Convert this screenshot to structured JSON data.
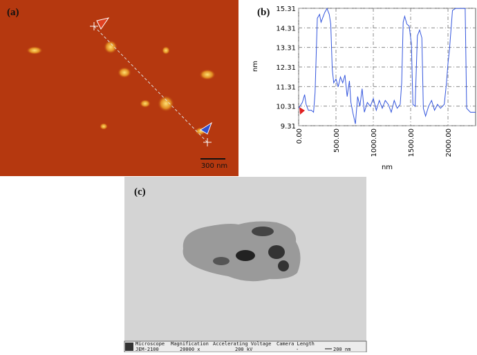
{
  "panel_a": {
    "label": "(a)",
    "scale_bar": "300 nm"
  },
  "chart_data": {
    "type": "line",
    "panel_label": "(b)",
    "y_label": "nm",
    "x_label": "nm",
    "x": [
      0,
      50,
      80,
      100,
      130,
      170,
      200,
      220,
      250,
      280,
      300,
      320,
      350,
      380,
      410,
      430,
      450,
      470,
      500,
      530,
      560,
      590,
      620,
      650,
      680,
      700,
      730,
      760,
      790,
      820,
      850,
      880,
      920,
      960,
      1000,
      1040,
      1080,
      1120,
      1160,
      1200,
      1240,
      1280,
      1320,
      1360,
      1380,
      1400,
      1420,
      1450,
      1480,
      1510,
      1530,
      1560,
      1590,
      1620,
      1650,
      1670,
      1700,
      1740,
      1780,
      1820,
      1860,
      1900,
      1950,
      1980,
      2000,
      2020,
      2060,
      2100,
      2150,
      2200,
      2230,
      2250,
      2300,
      2370
    ],
    "series": [
      {
        "color": "#3355dd",
        "values": [
          10.2,
          10.5,
          10.9,
          10.4,
          10.1,
          10.1,
          10.0,
          11.0,
          14.8,
          15.0,
          14.6,
          14.8,
          15.1,
          15.3,
          15.0,
          14.5,
          12.2,
          11.5,
          11.7,
          11.3,
          11.8,
          11.5,
          11.9,
          10.8,
          11.6,
          10.5,
          9.9,
          9.4,
          10.8,
          10.3,
          11.2,
          10.0,
          10.5,
          10.3,
          10.7,
          10.1,
          10.6,
          10.2,
          10.6,
          10.4,
          10.0,
          10.6,
          10.2,
          10.4,
          11.5,
          14.6,
          14.9,
          14.5,
          14.4,
          13.5,
          10.4,
          10.3,
          13.9,
          14.2,
          13.8,
          10.2,
          9.8,
          10.3,
          10.6,
          10.1,
          10.4,
          10.2,
          10.4,
          11.5,
          12.5,
          13.2,
          15.2,
          15.3,
          15.3,
          15.3,
          15.3,
          10.2,
          10.0,
          10.0
        ]
      }
    ],
    "xlim": [
      0,
      2370
    ],
    "ylim": [
      9.31,
      15.31
    ],
    "xticks": [
      {
        "value": 0,
        "label": "0.00"
      },
      {
        "value": 500,
        "label": "500.00"
      },
      {
        "value": 1000,
        "label": "1000.00"
      },
      {
        "value": 1500,
        "label": "1500.00"
      },
      {
        "value": 2000,
        "label": "2000.00"
      }
    ],
    "yticks": [
      9.31,
      10.31,
      11.31,
      12.31,
      13.31,
      14.31,
      15.31
    ],
    "grid": true
  },
  "panel_c": {
    "label": "(c)",
    "info_bar": {
      "headers": [
        "Microscope",
        "Magnification",
        "Accelerating Voltage",
        "Camera Length"
      ],
      "values": [
        "JEM-2100",
        "20000 x",
        "200 kV",
        "-"
      ],
      "scale_bar": "200 nm"
    }
  }
}
